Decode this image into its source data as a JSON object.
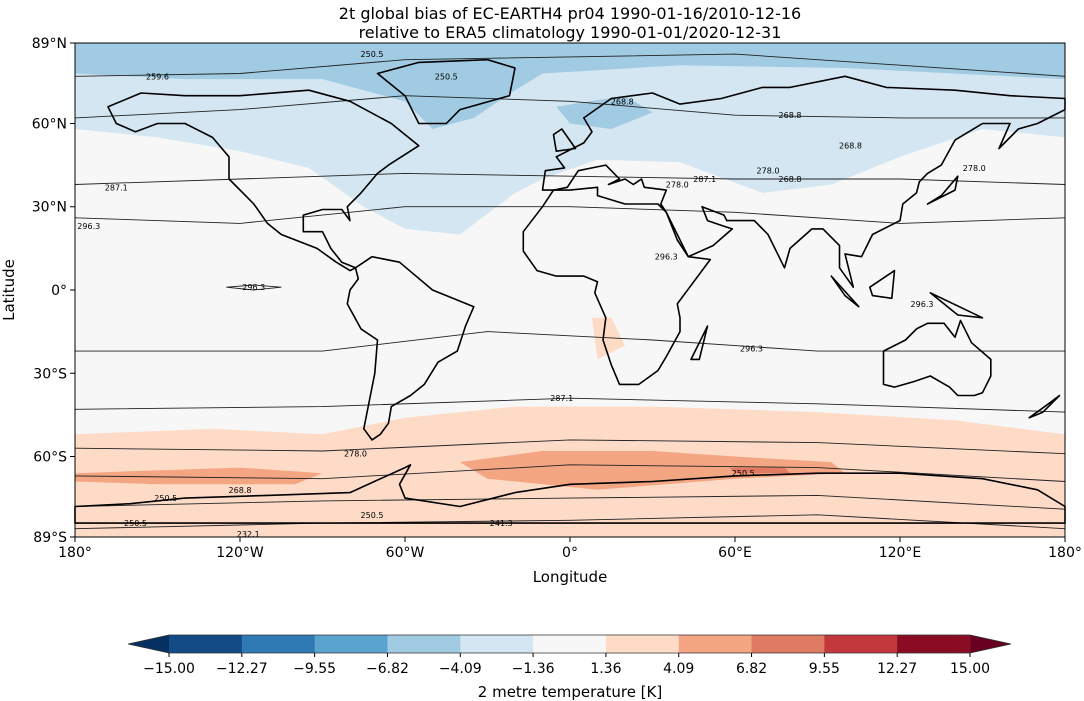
{
  "title_line1": "2t global bias of EC-EARTH4 pr04 1990-01-16/2010-12-16",
  "title_line2": "relative to ERA5 climatology 1990-01-01/2020-12-31",
  "xlabel": "Longitude",
  "ylabel": "Latitude",
  "x_ticks": [
    {
      "value": -180,
      "label": "180°"
    },
    {
      "value": -120,
      "label": "120°W"
    },
    {
      "value": -60,
      "label": "60°W"
    },
    {
      "value": 0,
      "label": "0°"
    },
    {
      "value": 60,
      "label": "60°E"
    },
    {
      "value": 120,
      "label": "120°E"
    },
    {
      "value": 180,
      "label": "180°"
    }
  ],
  "y_ticks": [
    {
      "value": 89,
      "label": "89°N"
    },
    {
      "value": 60,
      "label": "60°N"
    },
    {
      "value": 30,
      "label": "30°N"
    },
    {
      "value": 0,
      "label": "0°"
    },
    {
      "value": -30,
      "label": "30°S"
    },
    {
      "value": -60,
      "label": "60°S"
    },
    {
      "value": -89,
      "label": "89°S"
    }
  ],
  "colorbar": {
    "label": "2 metre temperature [K]",
    "ticks": [
      "−15.00",
      "−12.27",
      "−9.55",
      "−6.82",
      "−4.09",
      "−1.36",
      "1.36",
      "4.09",
      "6.82",
      "9.55",
      "12.27",
      "15.00"
    ],
    "colors": [
      "#134b87",
      "#2f79b5",
      "#5ba3cf",
      "#a0cbe2",
      "#d3e6f1",
      "#f7f7f7",
      "#fddbc7",
      "#f4a683",
      "#e07a62",
      "#c3383c",
      "#8a0d25"
    ],
    "extend_low": "#073062",
    "extend_high": "#67001f"
  },
  "contour_labels": [
    {
      "lon": -150,
      "lat": 77,
      "text": "259.6"
    },
    {
      "lon": -72,
      "lat": 85,
      "text": "250.5"
    },
    {
      "lon": -45,
      "lat": 77,
      "text": "250.5"
    },
    {
      "lon": 19,
      "lat": 68,
      "text": "268.8"
    },
    {
      "lon": 80,
      "lat": 63,
      "text": "268.8"
    },
    {
      "lon": 102,
      "lat": 52,
      "text": "268.8"
    },
    {
      "lon": 80,
      "lat": 40,
      "text": "268.8"
    },
    {
      "lon": -165,
      "lat": 37,
      "text": "287.1"
    },
    {
      "lon": 49,
      "lat": 40,
      "text": "287.1"
    },
    {
      "lon": 39,
      "lat": 38,
      "text": "278.0"
    },
    {
      "lon": 72,
      "lat": 43,
      "text": "278.0"
    },
    {
      "lon": 147,
      "lat": 44,
      "text": "278.0"
    },
    {
      "lon": -175,
      "lat": 23,
      "text": "296.3"
    },
    {
      "lon": -115,
      "lat": 1,
      "text": "296.3"
    },
    {
      "lon": 35,
      "lat": 12,
      "text": "296.3"
    },
    {
      "lon": 66,
      "lat": -21,
      "text": "296.3"
    },
    {
      "lon": 128,
      "lat": -5,
      "text": "296.3"
    },
    {
      "lon": -3,
      "lat": -39,
      "text": "287.1"
    },
    {
      "lon": -78,
      "lat": -59,
      "text": "278.0"
    },
    {
      "lon": -120,
      "lat": -72,
      "text": "268.8"
    },
    {
      "lon": 63,
      "lat": -66,
      "text": "250.5"
    },
    {
      "lon": -147,
      "lat": -75,
      "text": "250.5"
    },
    {
      "lon": -158,
      "lat": -84,
      "text": "250.5"
    },
    {
      "lon": -72,
      "lat": -81,
      "text": "250.5"
    },
    {
      "lon": -25,
      "lat": -84,
      "text": "241.3"
    },
    {
      "lon": -117,
      "lat": -88,
      "text": "232.1"
    }
  ]
}
